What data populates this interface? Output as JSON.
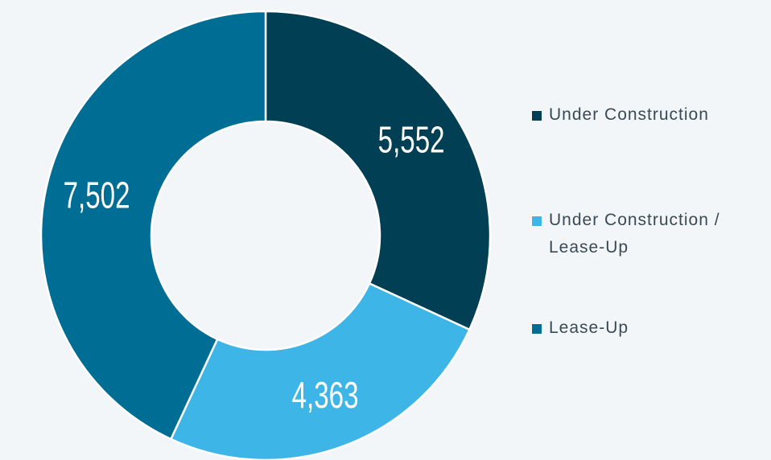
{
  "chart_data": {
    "type": "donut",
    "series": [
      {
        "name": "Under Construction",
        "color": "#003f54",
        "values": [
          5552
        ],
        "value_labels": [
          "5,552"
        ]
      },
      {
        "name": "Under Construction / Lease-Up",
        "color": "#3db5e6",
        "values": [
          4363
        ],
        "value_labels": [
          "4,363"
        ]
      },
      {
        "name": "Lease-Up",
        "color": "#006e94",
        "values": [
          7502
        ],
        "value_labels": [
          "7,502"
        ]
      }
    ],
    "legend": "right"
  }
}
